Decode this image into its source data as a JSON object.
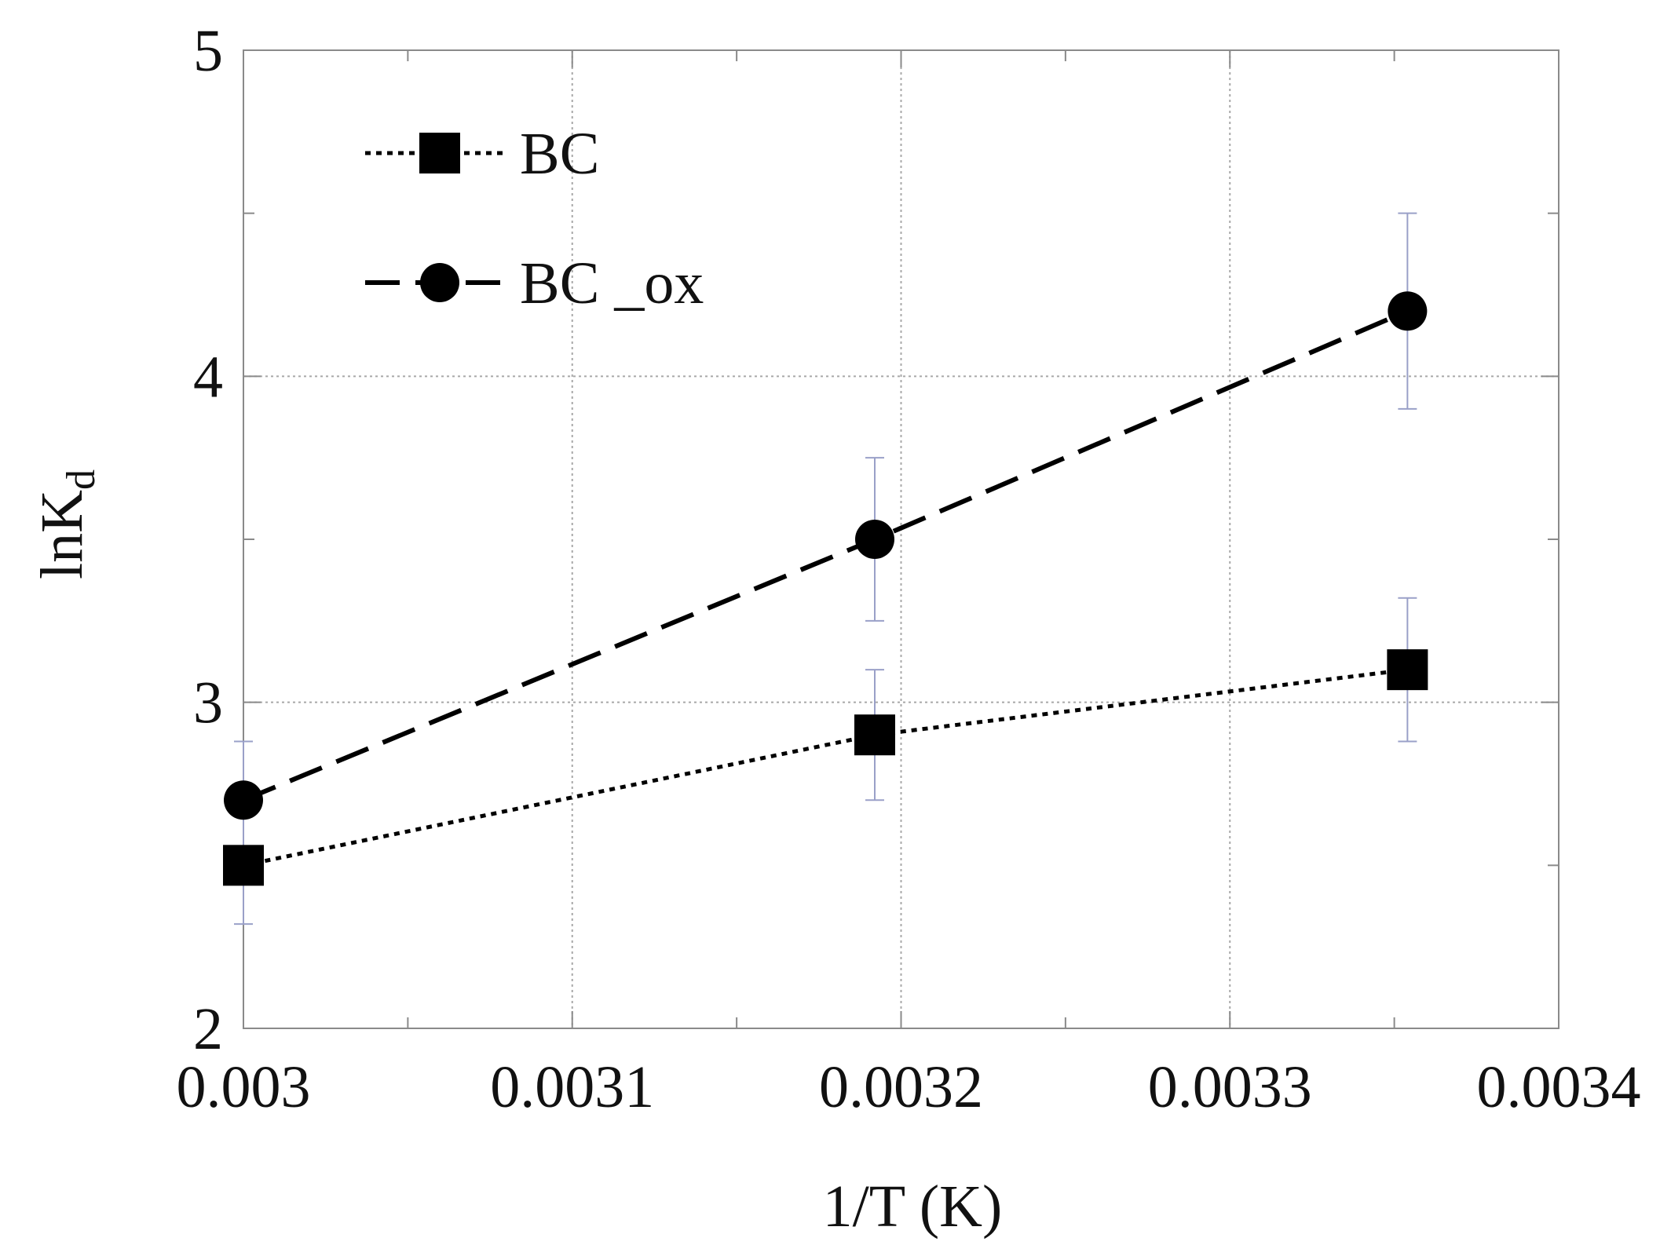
{
  "chart_data": {
    "type": "line",
    "title": "",
    "xlabel": "1/T (K)",
    "ylabel": {
      "base": "lnK",
      "subscript": "d"
    },
    "xlim": [
      0.003,
      0.0034
    ],
    "ylim": [
      2,
      5
    ],
    "x_ticks": [
      0.003,
      0.0031,
      0.0032,
      0.0033,
      0.0034
    ],
    "x_tick_labels": [
      "0.003",
      "0.0031",
      "0.0032",
      "0.0033",
      "0.0034"
    ],
    "x_minor_ticks": [
      0.00305,
      0.00315,
      0.00325,
      0.00335
    ],
    "y_ticks": [
      2,
      3,
      4,
      5
    ],
    "y_tick_labels": [
      "2",
      "3",
      "4",
      "5"
    ],
    "y_minor_ticks": [
      2.5,
      3.5,
      4.5
    ],
    "grid": true,
    "legend_position": "top-left",
    "series": [
      {
        "name": "BC",
        "marker": "square",
        "line_style": "dotted",
        "color": "#000000",
        "x": [
          0.003,
          0.003192,
          0.003354
        ],
        "y": [
          2.5,
          2.9,
          3.1
        ],
        "y_err": [
          0.18,
          0.2,
          0.22
        ]
      },
      {
        "name": "BC _ox",
        "marker": "circle",
        "line_style": "dashed",
        "color": "#000000",
        "x": [
          0.003,
          0.003192,
          0.003354
        ],
        "y": [
          2.7,
          3.5,
          4.2
        ],
        "y_err": [
          0.18,
          0.25,
          0.3
        ]
      }
    ],
    "errorbar_color": "#9aa0c8"
  }
}
